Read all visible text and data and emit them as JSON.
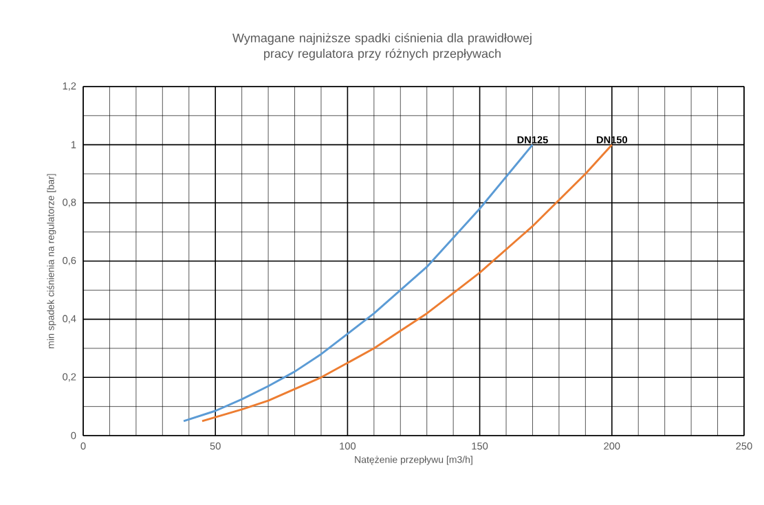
{
  "chart_data": {
    "type": "line",
    "title": "Wymagane najniższe spadki ciśnienia dla prawidłowej pracy regulatora przy różnych przepływach",
    "xlabel": "Natężenie przepływu [m3/h]",
    "ylabel": "min spadek ciśnienia na regulatorze [bar]",
    "series": [
      {
        "name": "DN125",
        "color": "#5b9bd5",
        "x": [
          38,
          50,
          60,
          70,
          80,
          90,
          100,
          110,
          120,
          130,
          140,
          150,
          160,
          170
        ],
        "values": [
          0.05,
          0.085,
          0.125,
          0.17,
          0.22,
          0.28,
          0.35,
          0.42,
          0.5,
          0.58,
          0.68,
          0.78,
          0.89,
          1.0
        ]
      },
      {
        "name": "DN150",
        "color": "#ed7d31",
        "x": [
          45,
          60,
          70,
          80,
          90,
          100,
          110,
          120,
          130,
          140,
          150,
          160,
          170,
          180,
          190,
          200
        ],
        "values": [
          0.05,
          0.09,
          0.12,
          0.16,
          0.2,
          0.25,
          0.3,
          0.36,
          0.42,
          0.49,
          0.56,
          0.64,
          0.72,
          0.81,
          0.9,
          1.0
        ]
      }
    ],
    "xlim": [
      0,
      250
    ],
    "ylim": [
      0,
      1.2
    ],
    "xticks": [
      0,
      50,
      100,
      150,
      200,
      250
    ],
    "yticks": [
      0,
      {
        "value": 0.2,
        "label": "0,2"
      },
      {
        "value": 0.4,
        "label": "0,4"
      },
      {
        "value": 0.6,
        "label": "0,6"
      },
      {
        "value": 0.8,
        "label": "0,8"
      },
      1,
      {
        "value": 1.2,
        "label": "1,2"
      }
    ],
    "grid": true,
    "legend": false,
    "marker": "none",
    "line_style": "solid"
  }
}
